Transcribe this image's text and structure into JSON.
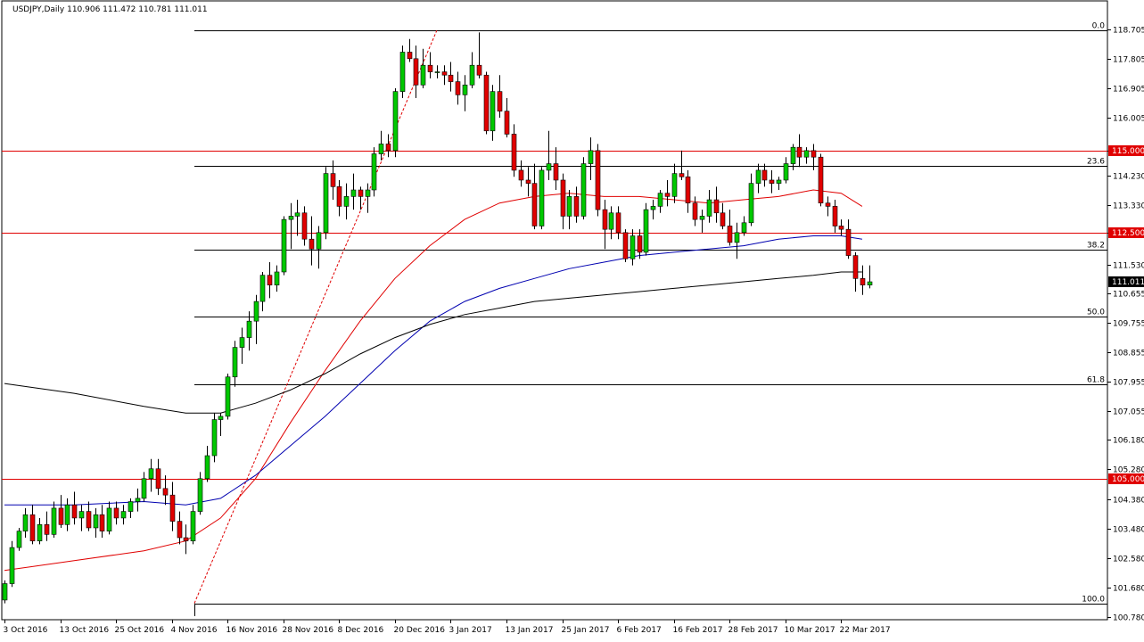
{
  "window": {
    "symbol_line": "USDJPY,Daily  110.906 111.472 110.781 111.011"
  },
  "colors": {
    "background": "#ffffff",
    "bull": "#00c800",
    "bear": "#e00000",
    "wick": "#000000",
    "ma_red": "#e00000",
    "ma_blue": "#0000b0",
    "ma_black": "#000000",
    "horizontal_red": "#e00000",
    "tag_red": "#e00000",
    "tag_black": "#000000"
  },
  "chart_data": {
    "type": "candlestick",
    "symbol": "USDJPY",
    "timeframe": "Daily",
    "ylim": [
      100.7,
      119.1
    ],
    "y_ticks": [
      "118.705",
      "117.805",
      "116.905",
      "116.005",
      "115.000",
      "114.230",
      "113.330",
      "112.500",
      "111.530",
      "110.655",
      "109.755",
      "108.855",
      "107.955",
      "107.055",
      "106.180",
      "105.280",
      "104.380",
      "103.480",
      "102.580",
      "101.680",
      "100.780"
    ],
    "x_tick_labels": [
      "3 Oct 2016",
      "13 Oct 2016",
      "25 Oct 2016",
      "4 Nov 2016",
      "16 Nov 2016",
      "28 Nov 2016",
      "8 Dec 2016",
      "20 Dec 2016",
      "3 Jan 2017",
      "13 Jan 2017",
      "25 Jan 2017",
      "6 Feb 2017",
      "16 Feb 2017",
      "28 Feb 2017",
      "10 Mar 2017",
      "22 Mar 2017"
    ],
    "candles": [
      [
        101.3,
        101.9,
        101.2,
        101.8
      ],
      [
        101.8,
        103.1,
        101.7,
        102.9
      ],
      [
        102.9,
        103.5,
        102.8,
        103.4
      ],
      [
        103.4,
        104.1,
        103.2,
        103.9
      ],
      [
        103.9,
        104.2,
        103.0,
        103.1
      ],
      [
        103.1,
        103.8,
        103.0,
        103.6
      ],
      [
        103.6,
        104.0,
        103.1,
        103.3
      ],
      [
        103.3,
        104.3,
        103.2,
        104.1
      ],
      [
        104.1,
        104.5,
        103.5,
        103.6
      ],
      [
        103.6,
        104.4,
        103.4,
        104.2
      ],
      [
        104.2,
        104.6,
        103.6,
        103.8
      ],
      [
        103.8,
        104.2,
        103.4,
        104.0
      ],
      [
        104.0,
        104.3,
        103.4,
        103.5
      ],
      [
        103.5,
        104.1,
        103.2,
        103.9
      ],
      [
        103.9,
        104.2,
        103.2,
        103.4
      ],
      [
        103.4,
        104.3,
        103.3,
        104.1
      ],
      [
        104.1,
        104.3,
        103.6,
        103.8
      ],
      [
        103.8,
        104.2,
        103.6,
        104.0
      ],
      [
        104.0,
        104.4,
        103.8,
        104.3
      ],
      [
        104.3,
        104.7,
        104.0,
        104.4
      ],
      [
        104.4,
        105.2,
        104.3,
        105.0
      ],
      [
        105.0,
        105.6,
        104.6,
        105.3
      ],
      [
        105.3,
        105.6,
        104.5,
        104.7
      ],
      [
        104.7,
        105.1,
        104.2,
        104.5
      ],
      [
        104.5,
        104.9,
        103.4,
        103.7
      ],
      [
        103.7,
        104.0,
        103.0,
        103.2
      ],
      [
        103.2,
        103.6,
        102.7,
        103.1
      ],
      [
        103.1,
        104.2,
        103.0,
        104.0
      ],
      [
        104.0,
        105.2,
        103.9,
        105.0
      ],
      [
        105.0,
        106.0,
        104.9,
        105.7
      ],
      [
        105.7,
        107.0,
        105.5,
        106.8
      ],
      [
        106.8,
        107.0,
        106.3,
        106.9
      ],
      [
        106.9,
        108.2,
        106.8,
        108.1
      ],
      [
        108.1,
        109.2,
        107.8,
        109.0
      ],
      [
        109.0,
        109.6,
        108.5,
        109.3
      ],
      [
        109.3,
        110.1,
        108.9,
        109.8
      ],
      [
        109.8,
        110.6,
        109.1,
        110.4
      ],
      [
        110.4,
        111.3,
        110.1,
        111.2
      ],
      [
        111.2,
        111.6,
        110.5,
        110.9
      ],
      [
        110.9,
        111.5,
        110.7,
        111.3
      ],
      [
        111.3,
        113.0,
        111.2,
        112.9
      ],
      [
        112.9,
        113.4,
        112.0,
        113.0
      ],
      [
        113.0,
        113.5,
        112.4,
        113.1
      ],
      [
        113.1,
        113.3,
        112.1,
        112.3
      ],
      [
        112.3,
        113.0,
        111.5,
        112.0
      ],
      [
        112.0,
        112.7,
        111.4,
        112.5
      ],
      [
        112.5,
        114.5,
        112.3,
        114.3
      ],
      [
        114.3,
        114.7,
        113.5,
        113.9
      ],
      [
        113.9,
        114.1,
        113.0,
        113.3
      ],
      [
        113.3,
        114.0,
        112.9,
        113.6
      ],
      [
        113.6,
        114.3,
        113.2,
        113.8
      ],
      [
        113.8,
        113.9,
        113.2,
        113.6
      ],
      [
        113.6,
        114.0,
        113.1,
        113.8
      ],
      [
        113.8,
        115.1,
        113.6,
        114.9
      ],
      [
        114.9,
        115.6,
        114.7,
        115.2
      ],
      [
        115.2,
        115.5,
        114.8,
        115.0
      ],
      [
        115.0,
        116.9,
        114.8,
        116.8
      ],
      [
        116.8,
        118.2,
        116.6,
        118.0
      ],
      [
        118.0,
        118.4,
        117.7,
        117.8
      ],
      [
        117.8,
        118.2,
        116.6,
        117.0
      ],
      [
        117.0,
        118.1,
        116.9,
        117.6
      ],
      [
        117.6,
        118.0,
        117.2,
        117.4
      ],
      [
        117.4,
        117.6,
        117.2,
        117.4
      ],
      [
        117.4,
        117.6,
        117.0,
        117.3
      ],
      [
        117.3,
        117.7,
        116.8,
        117.1
      ],
      [
        117.1,
        117.4,
        116.4,
        116.7
      ],
      [
        116.7,
        117.3,
        116.2,
        117.0
      ],
      [
        117.0,
        118.0,
        116.9,
        117.6
      ],
      [
        117.6,
        118.6,
        117.2,
        117.3
      ],
      [
        117.3,
        117.4,
        115.5,
        115.6
      ],
      [
        115.6,
        117.0,
        115.3,
        116.8
      ],
      [
        116.8,
        117.3,
        116.0,
        116.2
      ],
      [
        116.2,
        116.6,
        115.4,
        115.5
      ],
      [
        115.5,
        115.8,
        114.2,
        114.4
      ],
      [
        114.4,
        114.7,
        113.9,
        114.1
      ],
      [
        114.1,
        114.5,
        113.6,
        114.0
      ],
      [
        114.0,
        114.6,
        112.6,
        112.7
      ],
      [
        112.7,
        114.5,
        112.6,
        114.4
      ],
      [
        114.4,
        115.6,
        114.1,
        114.6
      ],
      [
        114.6,
        115.1,
        113.8,
        114.1
      ],
      [
        114.1,
        114.3,
        112.6,
        113.0
      ],
      [
        113.0,
        113.8,
        112.6,
        113.6
      ],
      [
        113.6,
        113.9,
        112.8,
        113.0
      ],
      [
        113.0,
        114.8,
        112.9,
        114.6
      ],
      [
        114.6,
        115.4,
        114.1,
        115.0
      ],
      [
        115.0,
        115.2,
        113.0,
        113.2
      ],
      [
        113.2,
        113.5,
        112.0,
        112.6
      ],
      [
        112.6,
        113.3,
        112.3,
        113.1
      ],
      [
        113.1,
        113.3,
        112.3,
        112.5
      ],
      [
        112.5,
        112.6,
        111.6,
        111.7
      ],
      [
        111.7,
        112.6,
        111.5,
        112.4
      ],
      [
        112.4,
        112.6,
        111.7,
        111.9
      ],
      [
        111.9,
        113.4,
        111.8,
        113.2
      ],
      [
        113.2,
        113.5,
        112.9,
        113.3
      ],
      [
        113.3,
        113.8,
        113.1,
        113.7
      ],
      [
        113.7,
        114.1,
        113.3,
        113.6
      ],
      [
        113.6,
        114.6,
        113.4,
        114.3
      ],
      [
        114.3,
        115.0,
        114.1,
        114.2
      ],
      [
        114.2,
        114.4,
        113.1,
        113.4
      ],
      [
        113.4,
        113.6,
        112.7,
        112.9
      ],
      [
        112.9,
        113.2,
        112.5,
        113.0
      ],
      [
        113.0,
        113.8,
        112.8,
        113.5
      ],
      [
        113.5,
        113.9,
        112.8,
        113.1
      ],
      [
        113.1,
        113.4,
        112.6,
        112.7
      ],
      [
        112.7,
        113.2,
        112.1,
        112.2
      ],
      [
        112.2,
        112.8,
        111.7,
        112.5
      ],
      [
        112.5,
        113.0,
        112.4,
        112.8
      ],
      [
        112.8,
        114.3,
        112.7,
        114.0
      ],
      [
        114.0,
        114.6,
        113.7,
        114.4
      ],
      [
        114.4,
        114.6,
        113.9,
        114.1
      ],
      [
        114.1,
        114.4,
        113.7,
        114.0
      ],
      [
        114.0,
        114.2,
        113.8,
        114.1
      ],
      [
        114.1,
        114.8,
        114.0,
        114.6
      ],
      [
        114.6,
        115.2,
        114.4,
        115.1
      ],
      [
        115.1,
        115.5,
        114.5,
        114.8
      ],
      [
        114.8,
        115.1,
        114.6,
        115.0
      ],
      [
        115.0,
        115.2,
        114.4,
        114.8
      ],
      [
        114.8,
        114.9,
        113.3,
        113.4
      ],
      [
        113.4,
        113.6,
        113.0,
        113.3
      ],
      [
        113.3,
        113.5,
        112.5,
        112.7
      ],
      [
        112.7,
        112.9,
        112.4,
        112.6
      ],
      [
        112.6,
        112.9,
        111.7,
        111.8
      ],
      [
        111.8,
        111.9,
        110.7,
        111.1
      ],
      [
        111.1,
        111.5,
        110.6,
        110.9
      ],
      [
        110.9,
        111.5,
        110.8,
        111.0
      ]
    ],
    "moving_averages": [
      {
        "color": "#e00000",
        "points": [
          [
            0,
            102.2
          ],
          [
            10,
            102.5
          ],
          [
            20,
            102.8
          ],
          [
            26,
            103.1
          ],
          [
            31,
            103.8
          ],
          [
            36,
            105.0
          ],
          [
            41,
            106.7
          ],
          [
            46,
            108.3
          ],
          [
            51,
            109.8
          ],
          [
            56,
            111.1
          ],
          [
            61,
            112.1
          ],
          [
            66,
            112.9
          ],
          [
            71,
            113.4
          ],
          [
            76,
            113.6
          ],
          [
            81,
            113.7
          ],
          [
            86,
            113.6
          ],
          [
            91,
            113.6
          ],
          [
            96,
            113.5
          ],
          [
            101,
            113.4
          ],
          [
            106,
            113.5
          ],
          [
            111,
            113.6
          ],
          [
            116,
            113.8
          ],
          [
            120,
            113.7
          ],
          [
            123,
            113.3
          ]
        ]
      },
      {
        "color": "#0000b0",
        "points": [
          [
            0,
            104.2
          ],
          [
            10,
            104.2
          ],
          [
            20,
            104.3
          ],
          [
            26,
            104.2
          ],
          [
            31,
            104.4
          ],
          [
            36,
            105.1
          ],
          [
            41,
            106.0
          ],
          [
            46,
            106.9
          ],
          [
            51,
            107.9
          ],
          [
            56,
            108.9
          ],
          [
            61,
            109.8
          ],
          [
            66,
            110.4
          ],
          [
            71,
            110.8
          ],
          [
            76,
            111.1
          ],
          [
            81,
            111.4
          ],
          [
            86,
            111.6
          ],
          [
            91,
            111.8
          ],
          [
            96,
            111.9
          ],
          [
            101,
            112.0
          ],
          [
            106,
            112.1
          ],
          [
            111,
            112.3
          ],
          [
            116,
            112.4
          ],
          [
            120,
            112.4
          ],
          [
            123,
            112.3
          ]
        ]
      },
      {
        "color": "#000000",
        "points": [
          [
            0,
            107.9
          ],
          [
            10,
            107.6
          ],
          [
            20,
            107.2
          ],
          [
            26,
            107.0
          ],
          [
            31,
            107.0
          ],
          [
            36,
            107.3
          ],
          [
            41,
            107.7
          ],
          [
            46,
            108.2
          ],
          [
            51,
            108.8
          ],
          [
            56,
            109.3
          ],
          [
            61,
            109.7
          ],
          [
            66,
            110.0
          ],
          [
            71,
            110.2
          ],
          [
            76,
            110.4
          ],
          [
            81,
            110.5
          ],
          [
            86,
            110.6
          ],
          [
            91,
            110.7
          ],
          [
            96,
            110.8
          ],
          [
            101,
            110.9
          ],
          [
            106,
            111.0
          ],
          [
            111,
            111.1
          ],
          [
            116,
            111.2
          ],
          [
            120,
            111.3
          ],
          [
            123,
            111.3
          ]
        ]
      }
    ],
    "horizontal_lines": [
      {
        "price": 115.0,
        "label": "115.000",
        "color": "#e00000"
      },
      {
        "price": 112.5,
        "label": "112.500",
        "color": "#e00000"
      },
      {
        "price": 105.0,
        "label": "105.000",
        "color": "#e00000"
      }
    ],
    "fibonacci": {
      "high": 118.66,
      "low": 101.2,
      "levels": [
        {
          "ratio": 0.0,
          "label": "0.0"
        },
        {
          "ratio": 0.236,
          "label": "23.6"
        },
        {
          "ratio": 0.382,
          "label": "38.2"
        },
        {
          "ratio": 0.5,
          "label": "50.0"
        },
        {
          "ratio": 0.618,
          "label": "61.8"
        },
        {
          "ratio": 1.0,
          "label": "100.0"
        }
      ],
      "start_index": 27,
      "end_index": 62
    },
    "current_price": {
      "price": 111.011,
      "label": "111.011"
    }
  }
}
